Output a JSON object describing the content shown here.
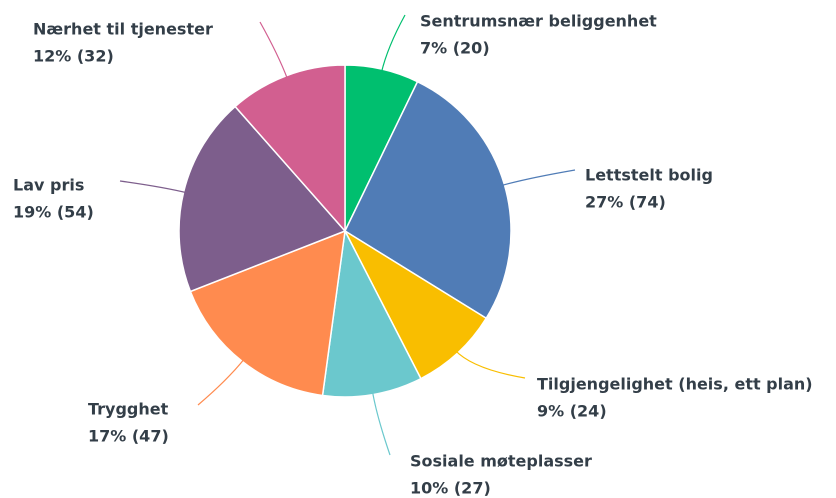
{
  "chart_data": {
    "type": "pie",
    "categories": [
      "Sentrumsnær beliggenhet",
      "Lettstelt bolig",
      "Tilgjengelighet (heis, ett plan)",
      "Sosiale møteplasser",
      "Trygghet",
      "Lav pris",
      "Nærhet til tjenester"
    ],
    "values": [
      20,
      74,
      24,
      27,
      47,
      54,
      32
    ],
    "value_labels": [
      "7% (20)",
      "27% (74)",
      "9% (24)",
      "10% (27)",
      "17% (47)",
      "19% (54)",
      "12% (32)"
    ],
    "colors": [
      "#00bf6f",
      "#507cb6",
      "#f9be00",
      "#6bc8cd",
      "#ff8b4f",
      "#7d5e8c",
      "#d25f90"
    ]
  }
}
